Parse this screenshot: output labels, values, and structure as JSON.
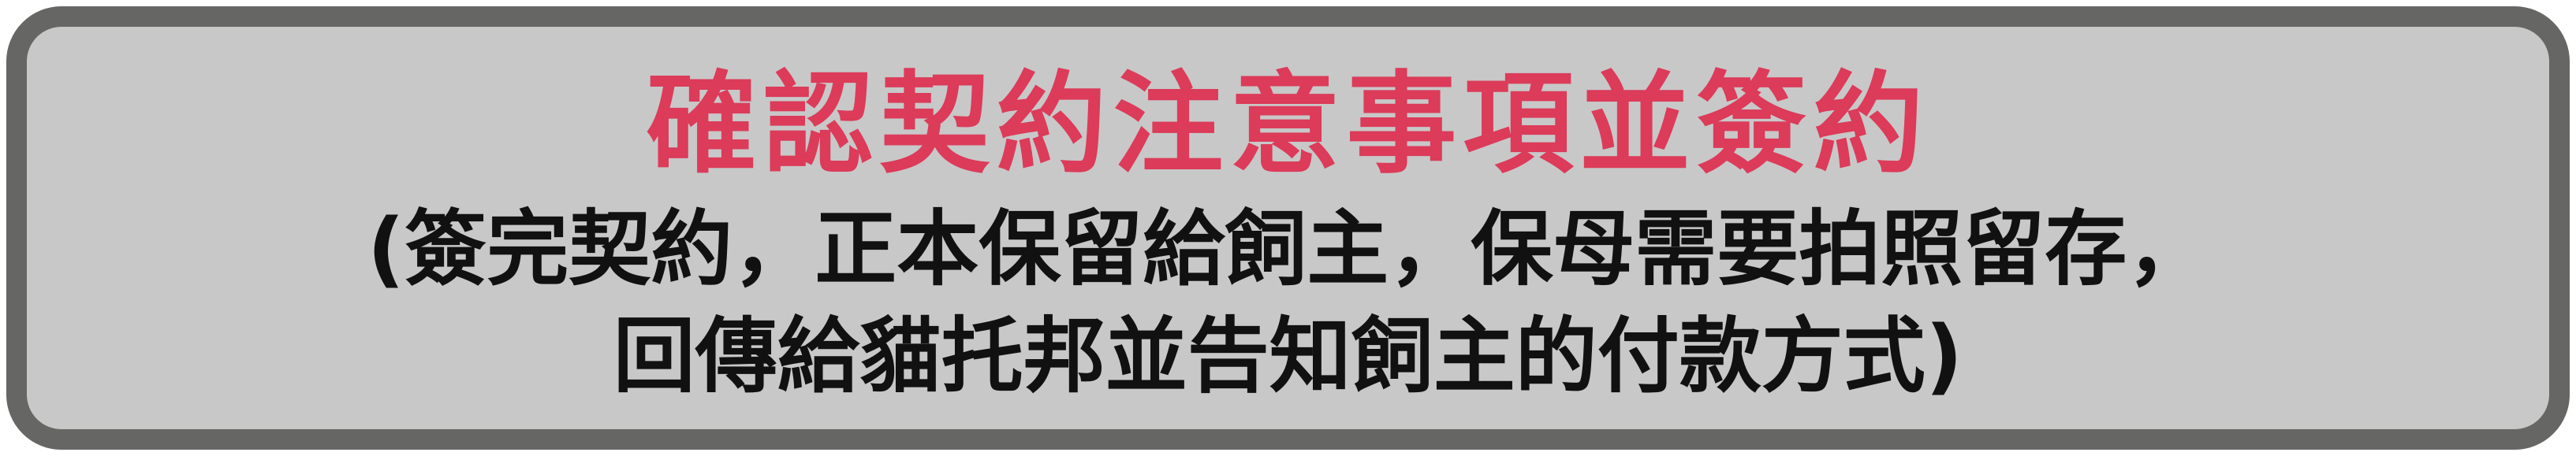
{
  "banner": {
    "title": "確認契約注意事項並簽約",
    "subtitle_line1": "(簽完契約，正本保留給飼主，保母需要拍照留存，",
    "subtitle_line2": "回傳給貓托邦並告知飼主的付款方式)",
    "colors": {
      "title": "#dc3b5a",
      "border": "#666664",
      "background": "#c8c8c8",
      "text": "#111111"
    }
  }
}
